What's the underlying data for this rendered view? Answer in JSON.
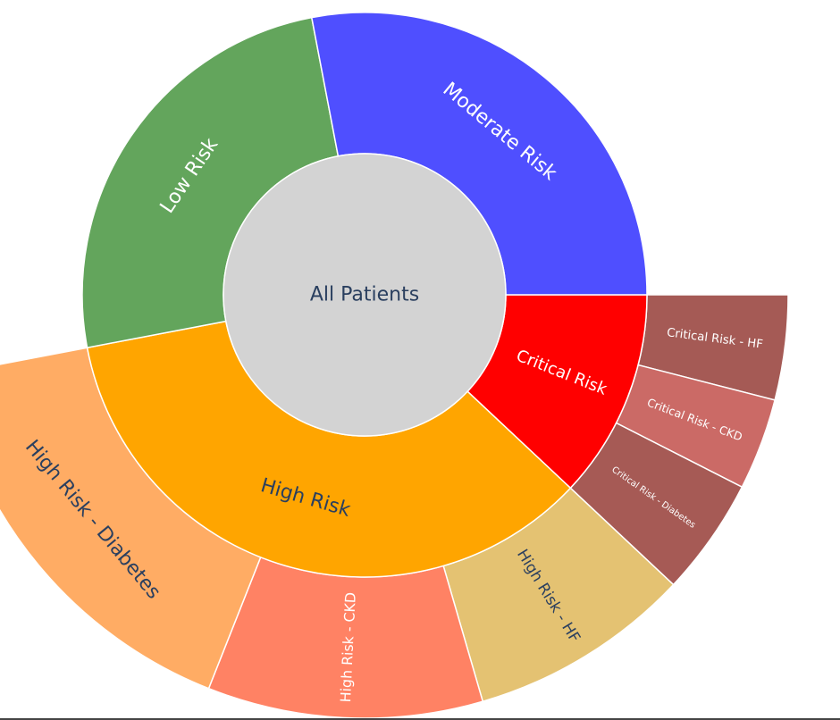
{
  "chart_data": {
    "type": "sunburst",
    "root": {
      "label": "All Patients",
      "color": "#d3d3d3",
      "text_color": "#2a3f5f"
    },
    "segments": [
      {
        "id": "critical",
        "label": "Critical Risk",
        "parent": "root",
        "value": 12,
        "color": "#ff0000",
        "text_color": "#ffffff"
      },
      {
        "id": "high",
        "label": "High Risk",
        "parent": "root",
        "value": 35,
        "color": "#ffa500",
        "text_color": "#2a3f5f"
      },
      {
        "id": "low",
        "label": "Low Risk",
        "parent": "root",
        "value": 25,
        "color": "#63a55c",
        "text_color": "#ffffff"
      },
      {
        "id": "moderate",
        "label": "Moderate Risk",
        "parent": "root",
        "value": 28,
        "color": "#4f4fff",
        "text_color": "#ffffff"
      },
      {
        "id": "crit_hf",
        "label": "Critical Risk - HF",
        "parent": "critical",
        "value": 4,
        "color": "#a55a55",
        "text_color": "#ffffff"
      },
      {
        "id": "crit_ckd",
        "label": "Critical Risk - CKD",
        "parent": "critical",
        "value": 3.5,
        "color": "#cb6a66",
        "text_color": "#ffffff"
      },
      {
        "id": "crit_diab",
        "label": "Critical Risk - Diabetes",
        "parent": "critical",
        "value": 4.5,
        "color": "#a65a55",
        "text_color": "#ffffff"
      },
      {
        "id": "high_hf",
        "label": "High Risk - HF",
        "parent": "high",
        "value": 8.5,
        "color": "#e4c272",
        "text_color": "#2a3f5f"
      },
      {
        "id": "high_ckd",
        "label": "High Risk - CKD",
        "parent": "high",
        "value": 10.5,
        "color": "#ff8264",
        "text_color": "#ffffff"
      },
      {
        "id": "high_diab",
        "label": "High Risk - Diabetes",
        "parent": "high",
        "value": 16,
        "color": "#ffac64",
        "text_color": "#2a3f5f"
      }
    ]
  }
}
